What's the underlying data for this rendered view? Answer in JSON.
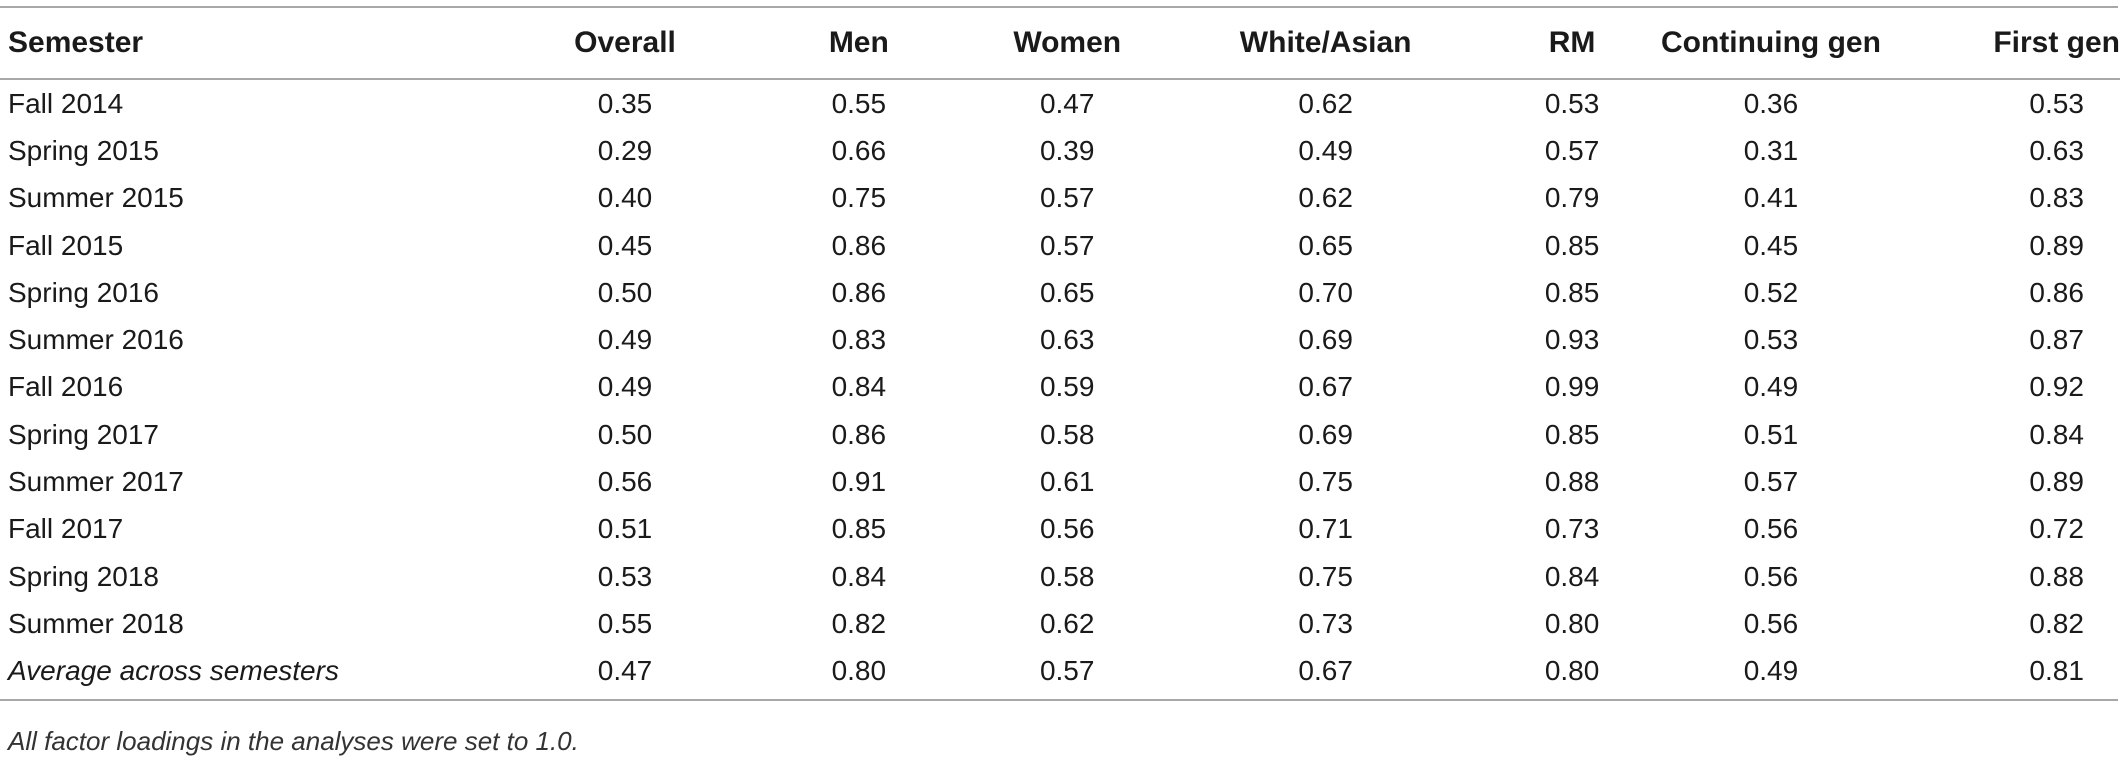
{
  "table": {
    "headers": [
      "Semester",
      "Overall",
      "Men",
      "Women",
      "White/Asian",
      "RM",
      "Continuing gen",
      "First gen"
    ],
    "rows": [
      [
        "Fall 2014",
        "0.35",
        "0.55",
        "0.47",
        "0.62",
        "0.53",
        "0.36",
        "0.53"
      ],
      [
        "Spring 2015",
        "0.29",
        "0.66",
        "0.39",
        "0.49",
        "0.57",
        "0.31",
        "0.63"
      ],
      [
        "Summer 2015",
        "0.40",
        "0.75",
        "0.57",
        "0.62",
        "0.79",
        "0.41",
        "0.83"
      ],
      [
        "Fall 2015",
        "0.45",
        "0.86",
        "0.57",
        "0.65",
        "0.85",
        "0.45",
        "0.89"
      ],
      [
        "Spring 2016",
        "0.50",
        "0.86",
        "0.65",
        "0.70",
        "0.85",
        "0.52",
        "0.86"
      ],
      [
        "Summer 2016",
        "0.49",
        "0.83",
        "0.63",
        "0.69",
        "0.93",
        "0.53",
        "0.87"
      ],
      [
        "Fall 2016",
        "0.49",
        "0.84",
        "0.59",
        "0.67",
        "0.99",
        "0.49",
        "0.92"
      ],
      [
        "Spring 2017",
        "0.50",
        "0.86",
        "0.58",
        "0.69",
        "0.85",
        "0.51",
        "0.84"
      ],
      [
        "Summer 2017",
        "0.56",
        "0.91",
        "0.61",
        "0.75",
        "0.88",
        "0.57",
        "0.89"
      ],
      [
        "Fall 2017",
        "0.51",
        "0.85",
        "0.56",
        "0.71",
        "0.73",
        "0.56",
        "0.72"
      ],
      [
        "Spring 2018",
        "0.53",
        "0.84",
        "0.58",
        "0.75",
        "0.84",
        "0.56",
        "0.88"
      ],
      [
        "Summer 2018",
        "0.55",
        "0.82",
        "0.62",
        "0.73",
        "0.80",
        "0.56",
        "0.82"
      ]
    ],
    "average_row": [
      "Average across semesters",
      "0.47",
      "0.80",
      "0.57",
      "0.67",
      "0.80",
      "0.49",
      "0.81"
    ]
  },
  "footnote": "All factor loadings in the analyses were set to 1.0."
}
